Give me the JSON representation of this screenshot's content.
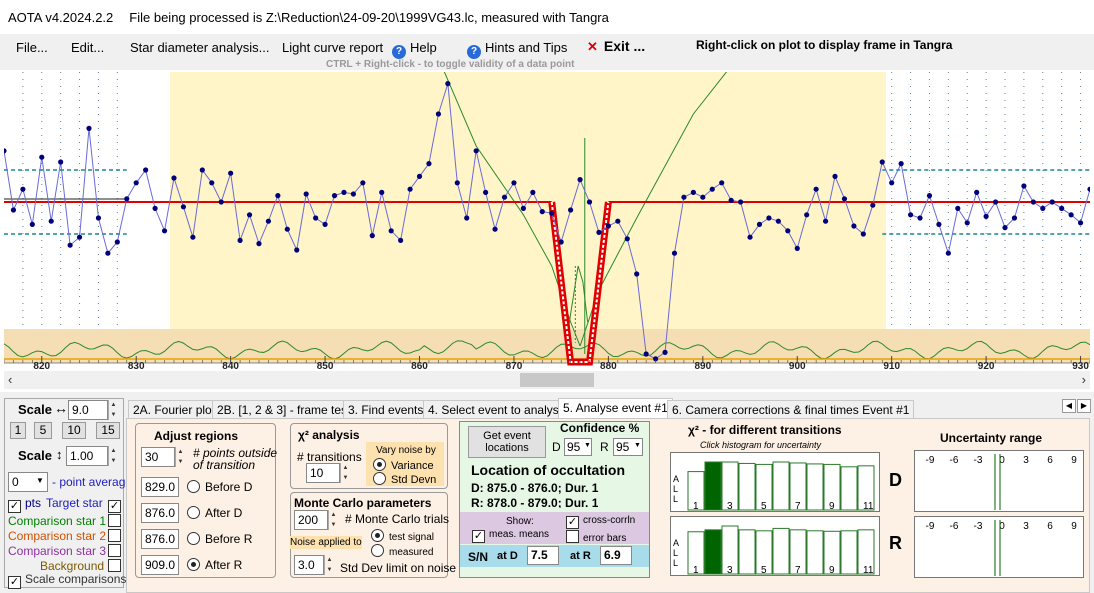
{
  "titlebar": {
    "app": "AOTA v4.2024.2.2",
    "file": "File being processed is Z:\\Reduction\\24-09-20\\1999VG43.lc, measured with Tangra"
  },
  "menu": {
    "file": "File...",
    "edit": "Edit...",
    "star_diam": "Star diameter analysis...",
    "lc_report": "Light curve report",
    "help": "Help",
    "hints": "Hints and Tips",
    "exit": "Exit ...",
    "right_click": "Right-click on plot to display frame in Tangra",
    "ctrl_note": "CTRL + Right-click  -  to toggle validity of a data point"
  },
  "chart_data": {
    "type": "line",
    "x_range": [
      816,
      931
    ],
    "x_ticks": [
      820,
      830,
      840,
      850,
      860,
      870,
      880,
      890,
      900,
      910,
      920,
      930
    ],
    "tick_labels": [
      "820",
      "830",
      "840",
      "850",
      "860",
      "870",
      "880",
      "890",
      "900",
      "910",
      "920",
      "930"
    ],
    "regions": {
      "before_d": [
        816,
        829
      ],
      "event": [
        829,
        909
      ],
      "after_r": [
        909,
        931
      ]
    },
    "red_model_level": 1.0,
    "event_d": 875.5,
    "event_r": 878.5,
    "x": [
      816,
      817,
      818,
      819,
      820,
      821,
      822,
      823,
      824,
      825,
      826,
      827,
      828,
      829,
      830,
      831,
      832,
      833,
      834,
      835,
      836,
      837,
      838,
      839,
      840,
      841,
      842,
      843,
      844,
      845,
      846,
      847,
      848,
      849,
      850,
      851,
      852,
      853,
      854,
      855,
      856,
      857,
      858,
      859,
      860,
      861,
      862,
      863,
      864,
      865,
      866,
      867,
      868,
      869,
      870,
      871,
      872,
      873,
      874,
      875,
      876,
      877,
      878,
      879,
      880,
      881,
      882,
      883,
      884,
      885,
      886,
      887,
      888,
      889,
      890,
      891,
      892,
      893,
      894,
      895,
      896,
      897,
      898,
      899,
      900,
      901,
      902,
      903,
      904,
      905,
      906,
      907,
      908,
      909,
      910,
      911,
      912,
      913,
      914,
      915,
      916,
      917,
      918,
      919,
      920,
      921,
      922,
      923,
      924,
      925,
      926,
      927,
      928,
      929,
      930,
      931
    ],
    "values": [
      1.32,
      0.95,
      1.08,
      0.86,
      1.28,
      0.88,
      1.25,
      0.73,
      0.78,
      1.46,
      0.9,
      0.68,
      0.75,
      1.02,
      1.12,
      1.2,
      0.96,
      0.82,
      1.15,
      0.97,
      0.78,
      1.2,
      1.12,
      1.0,
      1.18,
      0.76,
      0.92,
      0.74,
      0.88,
      1.04,
      0.83,
      0.7,
      1.05,
      0.9,
      0.86,
      1.04,
      1.06,
      1.05,
      1.12,
      0.79,
      1.06,
      0.82,
      0.76,
      1.08,
      1.16,
      1.24,
      1.55,
      1.74,
      1.12,
      0.9,
      1.32,
      1.06,
      0.83,
      1.03,
      1.12,
      0.96,
      1.06,
      0.94,
      0.93,
      0.75,
      0.95,
      1.14,
      1.0,
      0.81,
      0.85,
      0.88,
      0.77,
      0.55,
      0.05,
      0.02,
      0.06,
      0.68,
      1.03,
      1.06,
      1.03,
      1.08,
      1.12,
      1.01,
      1.0,
      0.78,
      0.86,
      0.9,
      0.88,
      0.82,
      0.71,
      0.92,
      1.08,
      0.88,
      1.16,
      1.02,
      0.85,
      0.8,
      0.98,
      1.25,
      1.12,
      1.24,
      0.92,
      0.9,
      1.04,
      0.86,
      0.68,
      0.96,
      0.87,
      1.06,
      0.91,
      1.0,
      0.84,
      0.9,
      1.1,
      1.0,
      0.96,
      1.0,
      0.96,
      0.92,
      0.87,
      1.08
    ]
  },
  "tabs": [
    "2A. Fourier plot",
    "2B. [1, 2 & 3] - frame test",
    "3. Find events",
    "4. Select event to analyse",
    "5. Analyse event #1",
    "6. Camera corrections & final times Event #1"
  ],
  "left_panel": {
    "scale_label": "Scale",
    "scale_h": "9.0",
    "scale_v": "1.00",
    "zoom_buttons": [
      "1",
      "5",
      "10",
      "15"
    ],
    "point_avg_value": "0",
    "point_avg_label": "- point average",
    "pts_label": "pts",
    "target_label": "Target star",
    "comp1": "Comparison star 1",
    "comp2": "Comparison star 2",
    "comp3": "Comparison star 3",
    "background": "Background",
    "scale_comparisons": "Scale comparisons"
  },
  "adjust": {
    "title": "Adjust regions",
    "points_outside": "30",
    "points_label_1": "# points outside",
    "points_label_2": "of transition",
    "before_d_val": "829.0",
    "before_d": "Before D",
    "after_d_val": "876.0",
    "after_d": "After D",
    "before_r_val": "876.0",
    "before_r": "Before R",
    "after_r_val": "909.0",
    "after_r": "After R"
  },
  "chi": {
    "title": "χ² analysis",
    "transitions_label": "# transitions",
    "transitions_val": "10",
    "vary_label": "Vary noise by",
    "variance": "Variance",
    "std_devn": "Std Devn"
  },
  "monte": {
    "title": "Monte Carlo parameters",
    "trials_val": "200",
    "trials_label": "# Monte Carlo trials",
    "noise_applied": "Noise applied to",
    "test_signal": "test signal",
    "measured": "measured",
    "std_val": "3.0",
    "std_label": "Std Dev limit on noise"
  },
  "events": {
    "get_locations": "Get event locations",
    "confidence": "Confidence %",
    "d_label": "D",
    "d_val": "95",
    "r_label": "R",
    "r_val": "95",
    "location_title": "Location of occultation",
    "d_line": "D: 875.0 - 876.0; Dur. 1",
    "r_line": "R: 878.0 - 879.0; Dur. 1",
    "show": "Show:",
    "meas_means": "meas. means",
    "cross_corr": "cross-corrln",
    "error_bars": "error bars",
    "sn": "S/N",
    "at_d": "at D",
    "sn_d": "7.5",
    "at_r": "at R",
    "sn_r": "6.9"
  },
  "transitions": {
    "title": "χ² - for different transitions",
    "subtitle": "Click histogram for uncertainty",
    "all_label": "A L L",
    "x_labels": [
      "1",
      "3",
      "5",
      "7",
      "9",
      "11"
    ],
    "d_label": "D",
    "r_label": "R",
    "d_heights": [
      0.8,
      1.0,
      1.0,
      0.97,
      0.95,
      1.0,
      0.98,
      0.96,
      0.95,
      0.9,
      0.92
    ],
    "r_heights": [
      0.88,
      0.92,
      1.0,
      0.92,
      0.9,
      0.95,
      0.92,
      0.9,
      0.89,
      0.9,
      0.92
    ]
  },
  "uncertainty": {
    "title": "Uncertainty range",
    "ticks": [
      "-9",
      "-6",
      "-3",
      "0",
      "3",
      "6",
      "9"
    ]
  },
  "colors": {
    "region_yellow": "#fff5c8",
    "band_tan": "#f5deb3",
    "model_red": "#e00000",
    "data_blue": "#00007a",
    "confidence_green": "#006400",
    "selected_bar": "#006400"
  }
}
